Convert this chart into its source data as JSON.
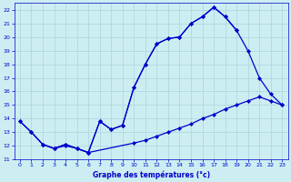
{
  "title": "Graphe des températures (°c)",
  "bg_color": "#cceef2",
  "grid_color": "#aad4dc",
  "line_color": "#0000cc",
  "xlim": [
    -0.5,
    23.5
  ],
  "ylim": [
    11,
    22.5
  ],
  "xticks": [
    0,
    1,
    2,
    3,
    4,
    5,
    6,
    7,
    8,
    9,
    10,
    11,
    12,
    13,
    14,
    15,
    16,
    17,
    18,
    19,
    20,
    21,
    22,
    23
  ],
  "yticks": [
    11,
    12,
    13,
    14,
    15,
    16,
    17,
    18,
    19,
    20,
    21,
    22
  ],
  "line1_x": [
    0,
    1,
    2,
    3,
    4,
    5,
    6,
    7,
    8,
    9,
    10,
    11,
    12,
    13,
    14,
    15,
    16,
    17,
    18,
    19,
    20,
    21,
    22,
    23
  ],
  "line1_y": [
    13.8,
    13.0,
    12.1,
    11.8,
    12.1,
    11.8,
    11.5,
    13.8,
    13.2,
    13.5,
    16.3,
    18.0,
    19.5,
    19.9,
    20.0,
    21.0,
    21.5,
    22.2,
    21.5,
    20.5,
    null,
    null,
    null,
    null
  ],
  "line2_x": [
    0,
    1,
    2,
    3,
    4,
    5,
    6,
    7,
    8,
    9,
    10,
    11,
    12,
    13,
    14,
    15,
    16,
    17,
    18,
    19,
    20,
    21,
    22,
    23
  ],
  "line2_y": [
    13.8,
    13.0,
    12.1,
    11.8,
    12.1,
    11.8,
    11.5,
    13.8,
    13.2,
    13.5,
    16.3,
    18.0,
    19.5,
    19.9,
    20.0,
    21.0,
    21.5,
    22.2,
    21.5,
    20.5,
    19.0,
    17.0,
    15.8,
    15.0
  ],
  "line3_x": [
    0,
    1,
    2,
    3,
    4,
    5,
    6,
    7,
    8,
    9,
    10,
    11,
    12,
    13,
    14,
    15,
    16,
    17,
    18,
    19,
    20,
    21,
    22,
    23
  ],
  "line3_y": [
    null,
    null,
    12.1,
    11.8,
    12.0,
    11.8,
    11.5,
    null,
    null,
    null,
    12.2,
    12.4,
    12.7,
    13.0,
    13.3,
    13.6,
    14.0,
    14.3,
    14.7,
    15.0,
    15.3,
    15.6,
    15.3,
    15.0
  ]
}
